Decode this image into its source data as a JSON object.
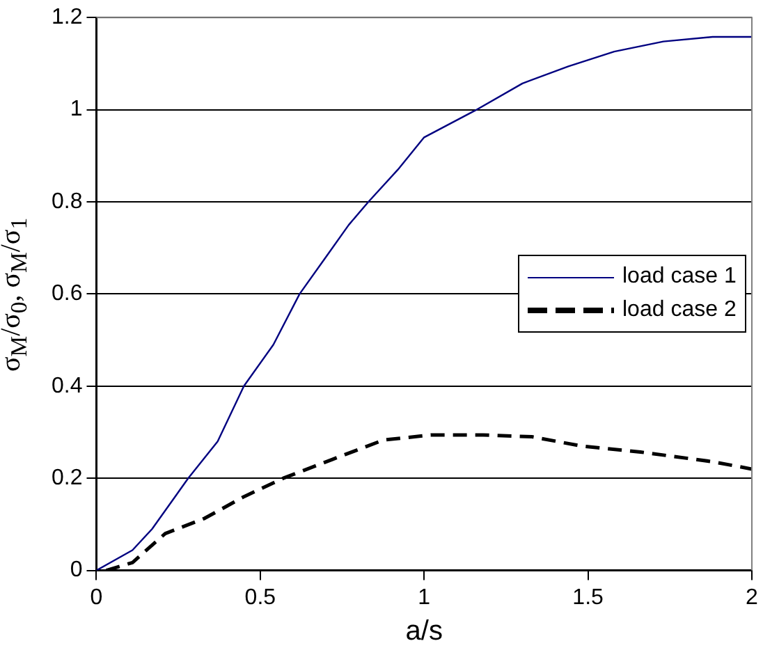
{
  "chart_data": {
    "type": "line",
    "xlabel": "a/s",
    "ylabel": "σ$_{M}$/σ$_{0}$, σ$_{M}$/σ$_{1}$",
    "xlim": [
      0,
      2
    ],
    "xticks": [
      0,
      0.5,
      1,
      1.5,
      2
    ],
    "ylim": [
      0,
      1.2
    ],
    "yticks": [
      0,
      0.2,
      0.4,
      0.6,
      0.8,
      1,
      1.2
    ],
    "grid": "y",
    "legend": "right",
    "marker": "none",
    "series": [
      {
        "name": "load case 1",
        "color": "#000080",
        "line_style": "solid",
        "x": [
          0,
          0.11,
          0.17,
          0.28,
          0.37,
          0.45,
          0.54,
          0.62,
          0.7,
          0.77,
          0.83,
          0.92,
          1.0,
          1.155,
          1.3,
          1.44,
          1.58,
          1.73,
          1.88,
          2.0
        ],
        "values": [
          0,
          0.044,
          0.09,
          0.2,
          0.28,
          0.4,
          0.49,
          0.6,
          0.68,
          0.75,
          0.8,
          0.87,
          0.94,
          0.998,
          1.057,
          1.094,
          1.126,
          1.148,
          1.158,
          1.158
        ]
      },
      {
        "name": "load case 2",
        "color": "#000000",
        "line_style": "dashed",
        "x": [
          0.03,
          0.11,
          0.21,
          0.33,
          0.45,
          0.57,
          0.72,
          0.876,
          1.02,
          1.18,
          1.33,
          1.48,
          1.66,
          1.88,
          2.0
        ],
        "values": [
          0,
          0.017,
          0.08,
          0.113,
          0.16,
          0.2,
          0.241,
          0.283,
          0.294,
          0.294,
          0.29,
          0.27,
          0.257,
          0.236,
          0.22
        ]
      }
    ]
  }
}
